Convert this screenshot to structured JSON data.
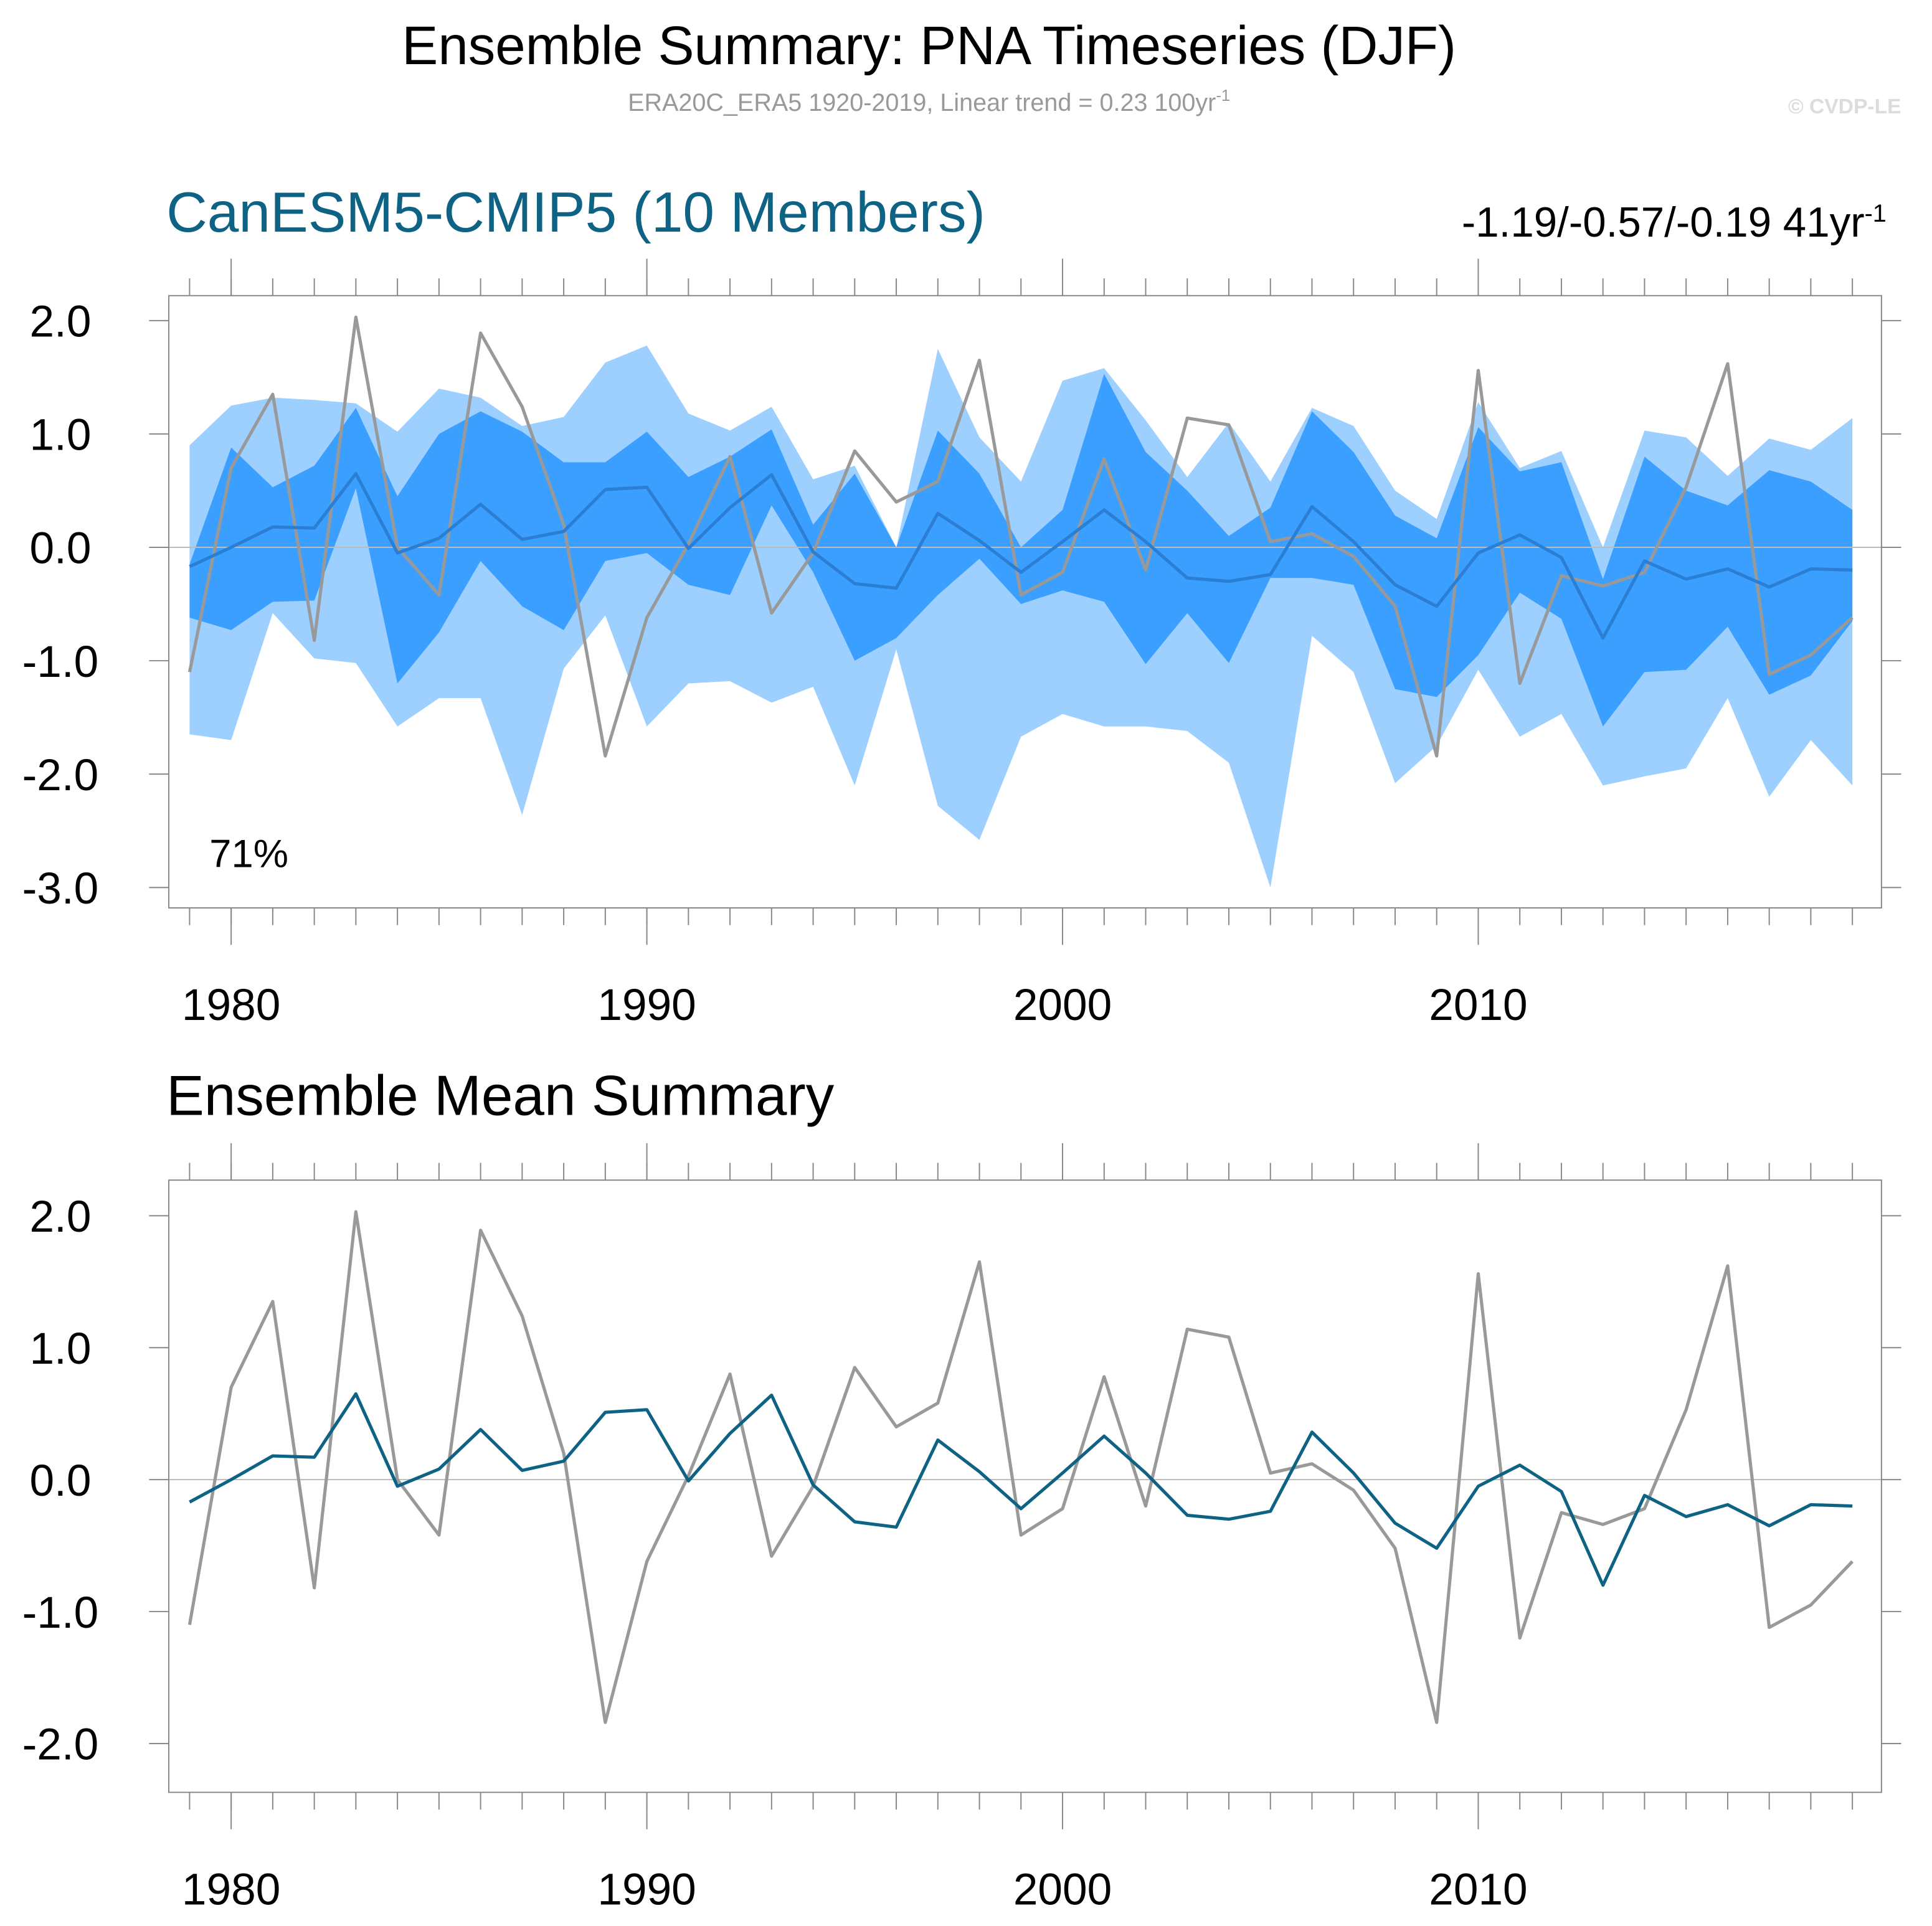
{
  "title": "Ensemble Summary: PNA Timeseries (DJF)",
  "subtitle": "ERA20C_ERA5 1920-2019, Linear trend = 0.23 100yr",
  "subtitle_superscript": "-1",
  "copyright": "© CVDP-LE",
  "chart_data": [
    {
      "type": "ensemble",
      "title": "CanESM5-CMIP5 (10 Members)",
      "title_color": "#0e6384",
      "stat": "-1.19/-0.57/-0.19 41yr",
      "stat_superscript": "-1",
      "annotation": "71%",
      "x": [
        1979,
        1980,
        1981,
        1982,
        1983,
        1984,
        1985,
        1986,
        1987,
        1988,
        1989,
        1990,
        1991,
        1992,
        1993,
        1994,
        1995,
        1996,
        1997,
        1998,
        1999,
        2000,
        2001,
        2002,
        2003,
        2004,
        2005,
        2006,
        2007,
        2008,
        2009,
        2010,
        2011,
        2012,
        2013,
        2014,
        2015,
        2016,
        2017,
        2018,
        2019
      ],
      "xlim": [
        1978.5,
        2019.7
      ],
      "xticks": [
        1980,
        1990,
        2000,
        2010
      ],
      "ylim": [
        -3.18,
        2.22
      ],
      "yticks": [
        {
          "value": 2,
          "label": "2.0"
        },
        {
          "value": 1,
          "label": "1.0"
        },
        {
          "value": 0,
          "label": "0.0"
        },
        {
          "value": -1,
          "label": "-1.0"
        },
        {
          "value": -2,
          "label": "-2.0"
        },
        {
          "value": -3,
          "label": "-3.0"
        }
      ],
      "bands": [
        {
          "color": "#9dcfff",
          "upper": [
            0.9,
            1.25,
            1.32,
            1.3,
            1.27,
            1.02,
            1.4,
            1.32,
            1.07,
            1.15,
            1.63,
            1.78,
            1.18,
            1.03,
            1.24,
            0.6,
            0.72,
            0.0,
            1.75,
            0.97,
            0.58,
            1.47,
            1.58,
            1.12,
            0.62,
            1.1,
            0.58,
            1.23,
            1.07,
            0.5,
            0.25,
            1.28,
            0.7,
            0.85,
            0.0,
            1.03,
            0.97,
            0.63,
            0.96,
            0.86,
            1.14
          ],
          "lower": [
            -1.65,
            -1.7,
            -0.58,
            -0.98,
            -1.02,
            -1.58,
            -1.33,
            -1.33,
            -2.36,
            -1.07,
            -0.6,
            -1.58,
            -1.2,
            -1.18,
            -1.37,
            -1.23,
            -2.1,
            -0.9,
            -2.28,
            -2.58,
            -1.67,
            -1.47,
            -1.58,
            -1.58,
            -1.62,
            -1.9,
            -3.0,
            -0.78,
            -1.1,
            -2.08,
            -1.75,
            -1.08,
            -1.67,
            -1.47,
            -2.1,
            -2.02,
            -1.95,
            -1.33,
            -2.2,
            -1.7,
            -2.1
          ]
        },
        {
          "color": "#3a9fff",
          "upper": [
            -0.15,
            0.88,
            0.53,
            0.72,
            1.23,
            0.45,
            1.0,
            1.2,
            1.02,
            0.75,
            0.75,
            1.02,
            0.62,
            0.8,
            1.04,
            0.2,
            0.65,
            0.0,
            1.03,
            0.65,
            0.0,
            0.33,
            1.53,
            0.84,
            0.5,
            0.1,
            0.35,
            1.2,
            0.84,
            0.28,
            0.08,
            1.06,
            0.67,
            0.75,
            -0.28,
            0.8,
            0.5,
            0.37,
            0.68,
            0.58,
            0.33
          ],
          "lower": [
            -0.62,
            -0.73,
            -0.48,
            -0.47,
            0.52,
            -1.2,
            -0.75,
            -0.12,
            -0.52,
            -0.73,
            -0.12,
            -0.05,
            -0.33,
            -0.42,
            0.37,
            -0.22,
            -1.0,
            -0.8,
            -0.42,
            -0.1,
            -0.5,
            -0.38,
            -0.48,
            -1.03,
            -0.58,
            -1.02,
            -0.27,
            -0.27,
            -0.33,
            -1.25,
            -1.32,
            -0.95,
            -0.4,
            -0.63,
            -1.58,
            -1.1,
            -1.08,
            -0.7,
            -1.3,
            -1.13,
            -0.65
          ]
        }
      ],
      "series": [
        {
          "color": "#999999",
          "values": [
            -1.1,
            0.7,
            1.35,
            -0.82,
            2.03,
            0.0,
            -0.42,
            1.89,
            1.24,
            0.2,
            -1.84,
            -0.62,
            0.03,
            0.8,
            -0.58,
            -0.05,
            0.85,
            0.4,
            0.58,
            1.65,
            -0.42,
            -0.22,
            0.78,
            -0.2,
            1.14,
            1.08,
            0.05,
            0.12,
            -0.08,
            -0.52,
            -1.84,
            1.56,
            -1.2,
            -0.25,
            -0.34,
            -0.22,
            0.53,
            1.62,
            -1.12,
            -0.95,
            -0.62
          ]
        },
        {
          "color": "#2a7fd4",
          "values": [
            -0.17,
            0.0,
            0.18,
            0.17,
            0.65,
            -0.05,
            0.08,
            0.38,
            0.07,
            0.14,
            0.51,
            0.53,
            -0.01,
            0.35,
            0.64,
            -0.04,
            -0.32,
            -0.36,
            0.3,
            0.06,
            -0.22,
            0.05,
            0.33,
            0.05,
            -0.27,
            -0.3,
            -0.24,
            0.36,
            0.05,
            -0.33,
            -0.52,
            -0.05,
            0.11,
            -0.09,
            -0.8,
            -0.12,
            -0.28,
            -0.19,
            -0.35,
            -0.19,
            -0.2
          ]
        }
      ]
    },
    {
      "type": "line",
      "title": "Ensemble Mean Summary",
      "title_color": "#000000",
      "x": [
        1979,
        1980,
        1981,
        1982,
        1983,
        1984,
        1985,
        1986,
        1987,
        1988,
        1989,
        1990,
        1991,
        1992,
        1993,
        1994,
        1995,
        1996,
        1997,
        1998,
        1999,
        2000,
        2001,
        2002,
        2003,
        2004,
        2005,
        2006,
        2007,
        2008,
        2009,
        2010,
        2011,
        2012,
        2013,
        2014,
        2015,
        2016,
        2017,
        2018,
        2019
      ],
      "xlim": [
        1978.5,
        2019.7
      ],
      "xticks": [
        1980,
        1990,
        2000,
        2010
      ],
      "ylim": [
        -2.37,
        2.27
      ],
      "yticks": [
        {
          "value": 2,
          "label": "2.0"
        },
        {
          "value": 1,
          "label": "1.0"
        },
        {
          "value": 0,
          "label": "0.0"
        },
        {
          "value": -1,
          "label": "-1.0"
        },
        {
          "value": -2,
          "label": "-2.0"
        }
      ],
      "series": [
        {
          "color": "#999999",
          "values": [
            -1.1,
            0.7,
            1.35,
            -0.82,
            2.03,
            0.0,
            -0.42,
            1.89,
            1.24,
            0.2,
            -1.84,
            -0.62,
            0.03,
            0.8,
            -0.58,
            -0.05,
            0.85,
            0.4,
            0.58,
            1.65,
            -0.42,
            -0.22,
            0.78,
            -0.2,
            1.14,
            1.08,
            0.05,
            0.12,
            -0.08,
            -0.52,
            -1.84,
            1.56,
            -1.2,
            -0.25,
            -0.34,
            -0.22,
            0.53,
            1.62,
            -1.12,
            -0.95,
            -0.62
          ]
        },
        {
          "color": "#0e6384",
          "values": [
            -0.17,
            0.0,
            0.18,
            0.17,
            0.65,
            -0.05,
            0.08,
            0.38,
            0.07,
            0.14,
            0.51,
            0.53,
            -0.01,
            0.35,
            0.64,
            -0.04,
            -0.32,
            -0.36,
            0.3,
            0.06,
            -0.22,
            0.05,
            0.33,
            0.05,
            -0.27,
            -0.3,
            -0.24,
            0.36,
            0.05,
            -0.33,
            -0.52,
            -0.05,
            0.11,
            -0.09,
            -0.8,
            -0.12,
            -0.28,
            -0.19,
            -0.35,
            -0.19,
            -0.2
          ]
        }
      ]
    }
  ]
}
